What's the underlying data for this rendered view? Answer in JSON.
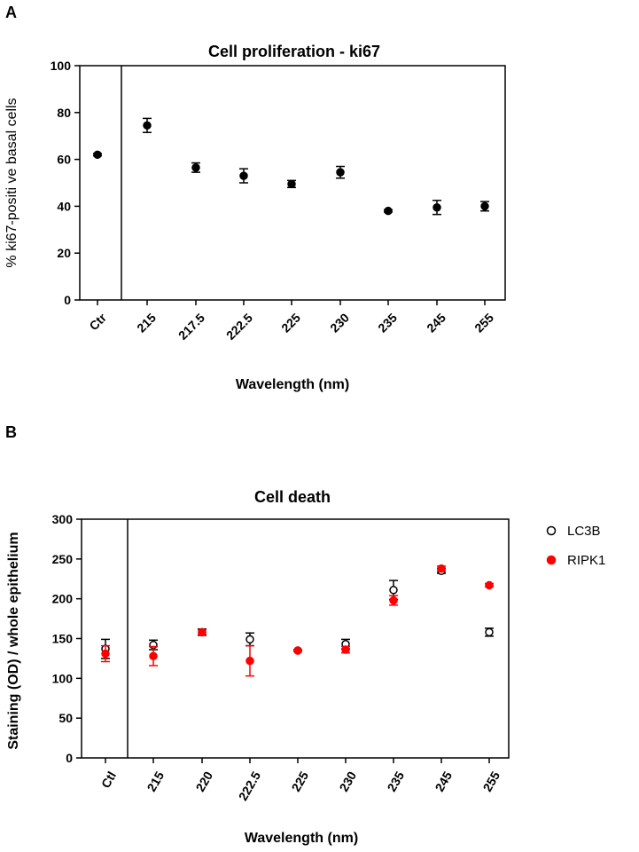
{
  "panels": {
    "a_letter": "A",
    "b_letter": "B"
  },
  "chart_data": [
    {
      "type": "scatter",
      "title": "Cell proliferation - ki67",
      "xlabel": "Wavelength (nm)",
      "ylabel": "% ki67-positi ve basal cells",
      "categories": [
        "Ctr",
        "215",
        "217.5",
        "222.5",
        "225",
        "230",
        "235",
        "245",
        "255"
      ],
      "ylim": [
        0,
        100
      ],
      "yticks": [
        0,
        20,
        40,
        60,
        80,
        100
      ],
      "series": [
        {
          "name": "ki67",
          "color": "#000000",
          "filled": true,
          "values": [
            62,
            74.5,
            56.5,
            53,
            49.5,
            54.5,
            38,
            39.5,
            40
          ],
          "errors": [
            0.5,
            3,
            2,
            3,
            1.5,
            2.5,
            0.5,
            3,
            2
          ]
        }
      ]
    },
    {
      "type": "scatter",
      "title": "Cell death",
      "xlabel": "Wavelength (nm)",
      "ylabel": "Staining (OD) / whole epithelium",
      "categories": [
        "Ctl",
        "215",
        "220",
        "222.5",
        "225",
        "230",
        "235",
        "245",
        "255"
      ],
      "ylim": [
        0,
        300
      ],
      "yticks": [
        0,
        50,
        100,
        150,
        200,
        250,
        300
      ],
      "legend_position": "right",
      "series": [
        {
          "name": "LC3B",
          "color": "#000000",
          "filled": false,
          "values": [
            137,
            142,
            158,
            149,
            135,
            143,
            211,
            235,
            158
          ],
          "errors": [
            12,
            6,
            4,
            8,
            1,
            6,
            12,
            3,
            5
          ]
        },
        {
          "name": "RIPK1",
          "color": "#ff0000",
          "filled": true,
          "values": [
            131,
            128,
            158,
            122,
            135,
            136,
            198,
            238,
            217
          ],
          "errors": [
            10,
            12,
            3,
            19,
            1,
            4,
            6,
            3,
            2
          ]
        }
      ]
    }
  ]
}
